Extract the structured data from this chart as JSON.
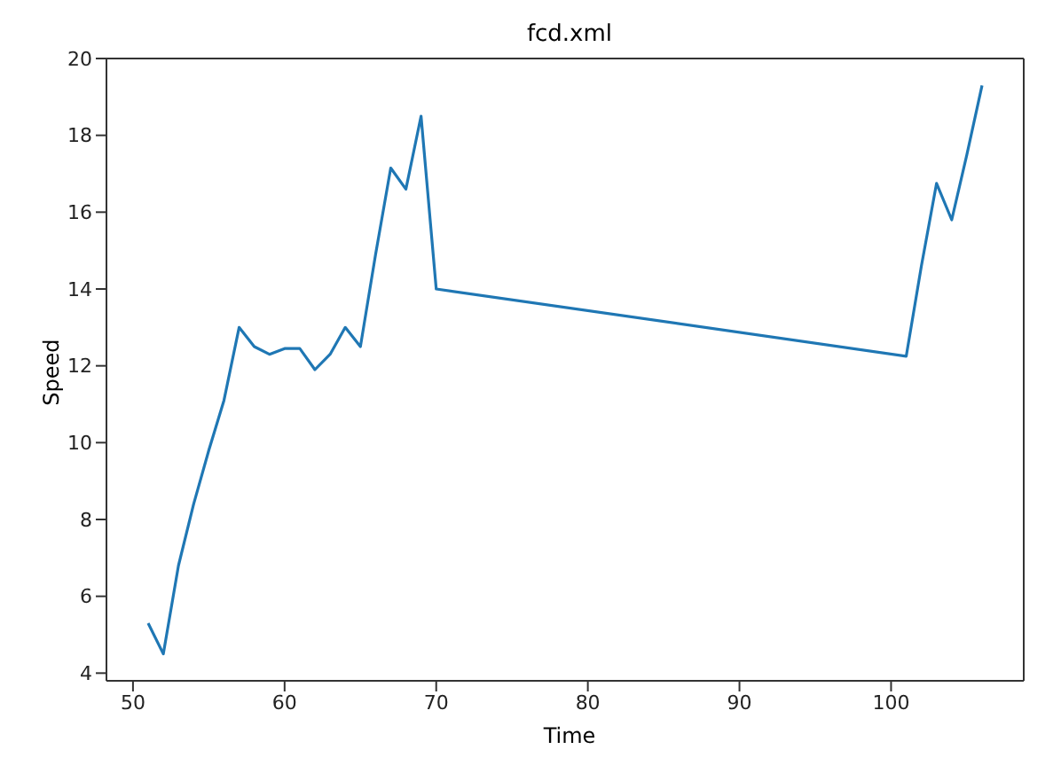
{
  "chart_data": {
    "type": "line",
    "title": "fcd.xml",
    "xlabel": "Time",
    "ylabel": "Speed",
    "x": [
      51,
      52,
      53,
      54,
      55,
      56,
      57,
      58,
      59,
      60,
      61,
      62,
      63,
      64,
      65,
      66,
      67,
      68,
      69,
      70,
      101,
      102,
      103,
      104,
      105,
      106
    ],
    "series": [
      {
        "color": "#1f77b4",
        "values": [
          5.3,
          4.5,
          6.8,
          8.4,
          9.8,
          11.1,
          13.0,
          12.5,
          12.3,
          12.45,
          12.45,
          11.9,
          12.3,
          13.0,
          12.5,
          14.9,
          17.15,
          16.6,
          18.5,
          14.0,
          12.25,
          14.6,
          16.75,
          15.8,
          17.5,
          19.3
        ]
      }
    ],
    "xlim": [
      48.25,
      108.75
    ],
    "xticks": [
      50,
      60,
      70,
      80,
      90,
      100
    ],
    "ylim": [
      3.8,
      20
    ],
    "yticks": [
      4,
      6,
      8,
      10,
      12,
      14,
      16,
      18,
      20
    ],
    "grid": false,
    "legend": false,
    "marker": "none",
    "line_style": "solid"
  }
}
